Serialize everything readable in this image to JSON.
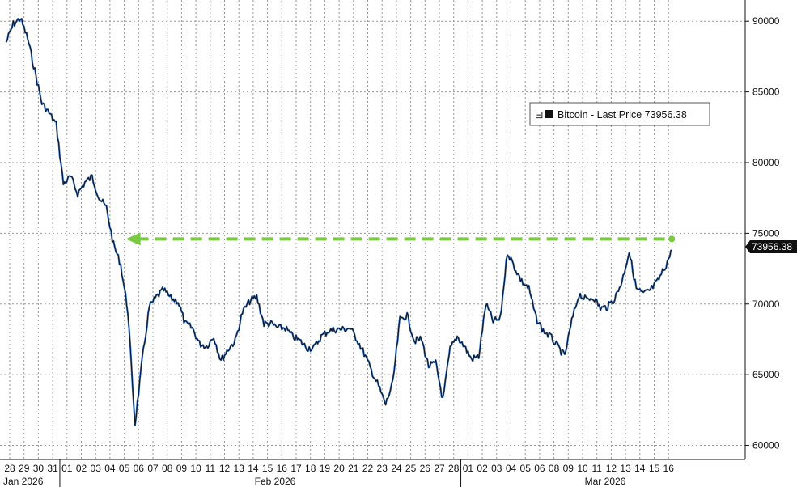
{
  "chart_data": {
    "type": "line",
    "title": "",
    "xlabel": "",
    "ylabel": "",
    "ylim": [
      59000,
      91500
    ],
    "y_ticks": [
      60000,
      65000,
      70000,
      75000,
      80000,
      85000,
      90000
    ],
    "y_tick_labels": [
      "60000",
      "65000",
      "70000",
      "75000",
      "80000",
      "85000",
      "90000"
    ],
    "x_day_labels": [
      "28",
      "29",
      "30",
      "31",
      "01",
      "02",
      "03",
      "04",
      "05",
      "06",
      "07",
      "08",
      "09",
      "10",
      "11",
      "12",
      "13",
      "14",
      "15",
      "16",
      "17",
      "18",
      "19",
      "20",
      "21",
      "22",
      "23",
      "24",
      "25",
      "26",
      "27",
      "28",
      "01",
      "02",
      "03",
      "04",
      "05",
      "06",
      "08",
      "09",
      "10",
      "11",
      "12",
      "13",
      "14",
      "15",
      "16"
    ],
    "month_labels": [
      "Jan 2026",
      "Feb 2026",
      "Mar 2026"
    ],
    "grid": true,
    "legend_position": "top-right",
    "legend": {
      "symbol": "⊟",
      "label": "Bitcoin - Last Price 73956.38"
    },
    "last_price_label": "73956.38",
    "colors": {
      "line_dark": "#111111",
      "line_blue": "#2f6fc9",
      "arrow": "#7ac943",
      "grid": "#9a9a9a",
      "last_price_box": "#111111"
    },
    "annotation": {
      "type": "horizontal-arrow",
      "y": 74600,
      "x_start": "05 Feb",
      "x_end": "16 Mar",
      "style": "dashed",
      "color": "#7ac943"
    },
    "series": [
      {
        "name": "Bitcoin - Last Price",
        "x": [
          "28 Jan",
          "28 Jan",
          "29 Jan",
          "29 Jan",
          "30 Jan",
          "30 Jan",
          "31 Jan",
          "31 Jan",
          "01 Feb",
          "01 Feb",
          "02 Feb",
          "02 Feb",
          "03 Feb",
          "03 Feb",
          "04 Feb",
          "04 Feb",
          "05 Feb",
          "05 Feb",
          "06 Feb",
          "06 Feb",
          "07 Feb",
          "07 Feb",
          "08 Feb",
          "08 Feb",
          "09 Feb",
          "09 Feb",
          "10 Feb",
          "10 Feb",
          "11 Feb",
          "11 Feb",
          "12 Feb",
          "12 Feb",
          "13 Feb",
          "13 Feb",
          "14 Feb",
          "14 Feb",
          "15 Feb",
          "15 Feb",
          "16 Feb",
          "16 Feb",
          "17 Feb",
          "17 Feb",
          "18 Feb",
          "18 Feb",
          "19 Feb",
          "19 Feb",
          "20 Feb",
          "20 Feb",
          "21 Feb",
          "21 Feb",
          "22 Feb",
          "22 Feb",
          "23 Feb",
          "23 Feb",
          "24 Feb",
          "24 Feb",
          "25 Feb",
          "25 Feb",
          "26 Feb",
          "26 Feb",
          "27 Feb",
          "27 Feb",
          "28 Feb",
          "28 Feb",
          "01 Mar",
          "01 Mar",
          "02 Mar",
          "02 Mar",
          "03 Mar",
          "03 Mar",
          "04 Mar",
          "04 Mar",
          "05 Mar",
          "05 Mar",
          "06 Mar",
          "06 Mar",
          "08 Mar",
          "08 Mar",
          "09 Mar",
          "09 Mar",
          "10 Mar",
          "10 Mar",
          "11 Mar",
          "11 Mar",
          "12 Mar",
          "12 Mar",
          "13 Mar",
          "13 Mar",
          "14 Mar",
          "14 Mar",
          "15 Mar",
          "15 Mar",
          "16 Mar",
          "16 Mar"
        ],
        "values": [
          88500,
          89800,
          90200,
          88800,
          86500,
          84200,
          83500,
          82700,
          78500,
          79000,
          77800,
          78600,
          79000,
          77500,
          76800,
          74200,
          72800,
          69500,
          61500,
          66000,
          69800,
          70500,
          71000,
          70400,
          70200,
          68600,
          68300,
          67200,
          67000,
          67700,
          66000,
          66800,
          67400,
          69400,
          70200,
          70500,
          68600,
          68600,
          68300,
          68300,
          67700,
          67400,
          66900,
          66900,
          67700,
          68100,
          68200,
          68200,
          68300,
          67500,
          66500,
          65300,
          64200,
          62900,
          64400,
          68900,
          69200,
          67400,
          67500,
          65600,
          65800,
          63200,
          66800,
          67700,
          67000,
          66100,
          66300,
          70000,
          68800,
          68900,
          73700,
          72600,
          71600,
          71100,
          69000,
          68100,
          67700,
          67000,
          66300,
          68800,
          70700,
          70300,
          70500,
          69700,
          69800,
          70400,
          71600,
          73700,
          71100,
          70700,
          71000,
          71600,
          72600,
          73800
        ]
      }
    ]
  }
}
